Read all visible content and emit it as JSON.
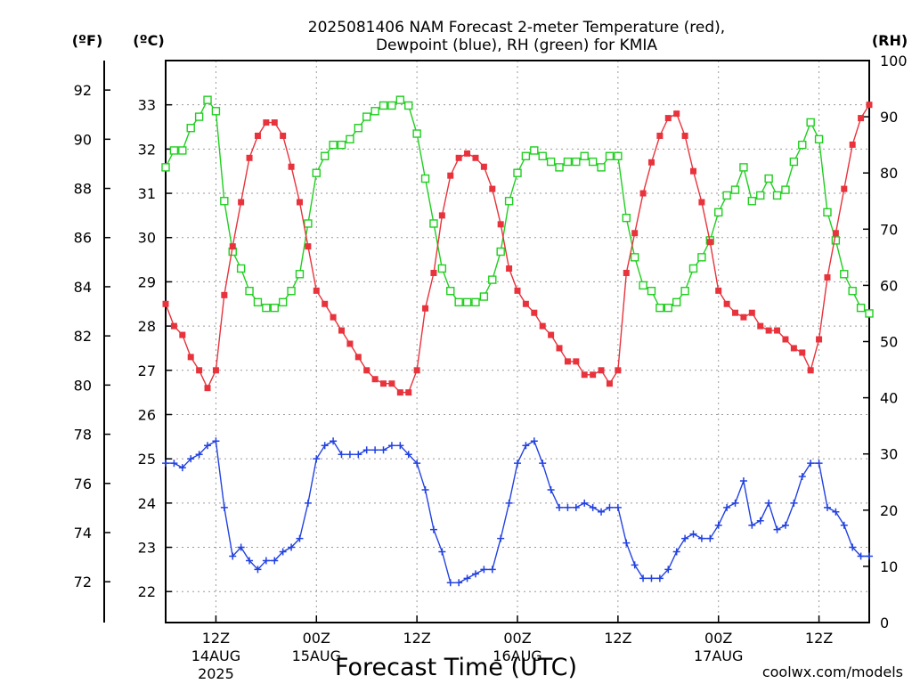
{
  "chart_data": {
    "type": "line",
    "title_line1": "2025081406 NAM Forecast 2-meter Temperature (red),",
    "title_line2": "Dewpoint (blue), RH (green) for KMIA",
    "xlabel": "Forecast Time (UTC)",
    "credit": "coolwx.com/models",
    "unit_labels": {
      "fahrenheit": "(ºF)",
      "celsius": "(ºC)",
      "rh": "(RH)"
    },
    "x_range_hours": [
      0,
      84
    ],
    "celsius_range": [
      21.3,
      34.0
    ],
    "rh_range": [
      0,
      100
    ],
    "fahrenheit_ticks": [
      "72",
      "74",
      "76",
      "78",
      "80",
      "82",
      "84",
      "86",
      "88",
      "90",
      "92"
    ],
    "fahrenheit_values": [
      72,
      74,
      76,
      78,
      80,
      82,
      84,
      86,
      88,
      90,
      92
    ],
    "celsius_ticks": [
      "22",
      "23",
      "24",
      "25",
      "26",
      "27",
      "28",
      "29",
      "30",
      "31",
      "32",
      "33"
    ],
    "celsius_values": [
      22,
      23,
      24,
      25,
      26,
      27,
      28,
      29,
      30,
      31,
      32,
      33
    ],
    "rh_ticks": [
      "0",
      "10",
      "20",
      "30",
      "40",
      "50",
      "60",
      "70",
      "80",
      "90",
      "100"
    ],
    "rh_values": [
      0,
      10,
      20,
      30,
      40,
      50,
      60,
      70,
      80,
      90,
      100
    ],
    "time_ticks": [
      {
        "label": "12Z",
        "hour": 6,
        "date": "14AUG",
        "year": "2025"
      },
      {
        "label": "00Z",
        "hour": 18,
        "date": "15AUG",
        "year": ""
      },
      {
        "label": "12Z",
        "hour": 30,
        "date": "",
        "year": ""
      },
      {
        "label": "00Z",
        "hour": 42,
        "date": "16AUG",
        "year": ""
      },
      {
        "label": "12Z",
        "hour": 54,
        "date": "",
        "year": ""
      },
      {
        "label": "00Z",
        "hour": 66,
        "date": "17AUG",
        "year": ""
      },
      {
        "label": "12Z",
        "hour": 78,
        "date": "",
        "year": ""
      }
    ],
    "colors": {
      "temperature": "#e8333c",
      "dewpoint": "#2342e0",
      "rh": "#1fcf1f",
      "grid": "#9a9a9a"
    },
    "series": [
      {
        "name": "Temperature",
        "axis": "celsius",
        "marker": "filled-square",
        "values": [
          28.5,
          28.0,
          27.8,
          27.3,
          27.0,
          26.6,
          27.0,
          28.7,
          29.8,
          30.8,
          31.8,
          32.3,
          32.6,
          32.6,
          32.3,
          31.6,
          30.8,
          29.8,
          28.8,
          28.5,
          28.2,
          27.9,
          27.6,
          27.3,
          27.0,
          26.8,
          26.7,
          26.7,
          26.5,
          26.5,
          27.0,
          28.4,
          29.2,
          30.5,
          31.4,
          31.8,
          31.9,
          31.8,
          31.6,
          31.1,
          30.3,
          29.3,
          28.8,
          28.5,
          28.3,
          28.0,
          27.8,
          27.5,
          27.2,
          27.2,
          26.9,
          26.9,
          27.0,
          26.7,
          27.0,
          29.2,
          30.1,
          31.0,
          31.7,
          32.3,
          32.7,
          32.8,
          32.3,
          31.5,
          30.8,
          29.9,
          28.8,
          28.5,
          28.3,
          28.2,
          28.3,
          28.0,
          27.9,
          27.9,
          27.7,
          27.5,
          27.4,
          27.0,
          27.7,
          29.1,
          30.1,
          31.1,
          32.1,
          32.7,
          33.0
        ]
      },
      {
        "name": "Dewpoint",
        "axis": "celsius",
        "marker": "plus",
        "values": [
          24.9,
          24.9,
          24.8,
          25.0,
          25.1,
          25.3,
          25.4,
          23.9,
          22.8,
          23.0,
          22.7,
          22.5,
          22.7,
          22.7,
          22.9,
          23.0,
          23.2,
          24.0,
          25.0,
          25.3,
          25.4,
          25.1,
          25.1,
          25.1,
          25.2,
          25.2,
          25.2,
          25.3,
          25.3,
          25.1,
          24.9,
          24.3,
          23.4,
          22.9,
          22.2,
          22.2,
          22.3,
          22.4,
          22.5,
          22.5,
          23.2,
          24.0,
          24.9,
          25.3,
          25.4,
          24.9,
          24.3,
          23.9,
          23.9,
          23.9,
          24.0,
          23.9,
          23.8,
          23.9,
          23.9,
          23.1,
          22.6,
          22.3,
          22.3,
          22.3,
          22.5,
          22.9,
          23.2,
          23.3,
          23.2,
          23.2,
          23.5,
          23.9,
          24.0,
          24.5,
          23.5,
          23.6,
          24.0,
          23.4,
          23.5,
          24.0,
          24.6,
          24.9,
          24.9,
          23.9,
          23.8,
          23.5,
          23.0,
          22.8,
          22.8
        ]
      },
      {
        "name": "RH",
        "axis": "rh",
        "marker": "open-square",
        "values": [
          81,
          84,
          84,
          88,
          90,
          93,
          91,
          75,
          66,
          63,
          59,
          57,
          56,
          56,
          57,
          59,
          62,
          71,
          80,
          83,
          85,
          85,
          86,
          88,
          90,
          91,
          92,
          92,
          93,
          92,
          87,
          79,
          71,
          63,
          59,
          57,
          57,
          57,
          58,
          61,
          66,
          75,
          80,
          83,
          84,
          83,
          82,
          81,
          82,
          82,
          83,
          82,
          81,
          83,
          83,
          72,
          65,
          60,
          59,
          56,
          56,
          57,
          59,
          63,
          65,
          68,
          73,
          76,
          77,
          81,
          75,
          76,
          79,
          76,
          77,
          82,
          85,
          89,
          86,
          73,
          68,
          62,
          59,
          56,
          55
        ]
      }
    ]
  }
}
